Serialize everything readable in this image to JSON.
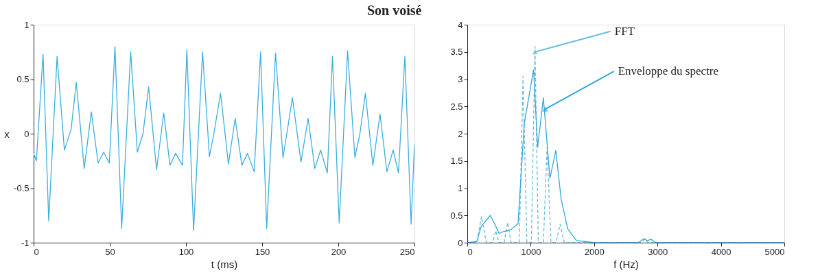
{
  "chart_data": [
    {
      "type": "line",
      "title": "Son voisé",
      "xlabel": "t (ms)",
      "ylabel": "x",
      "xlim": [
        0,
        250
      ],
      "xticks": [
        0,
        50,
        100,
        150,
        200,
        250
      ],
      "ylim": [
        -1,
        1
      ],
      "yticks": [
        -1,
        -0.5,
        0,
        0.5,
        1
      ],
      "grid": false,
      "line_style": "solid",
      "series": [
        {
          "color": "#3aaee0",
          "x": [
            0,
            1.8,
            6.2,
            9.9,
            15.4,
            20.2,
            24.6,
            28.0,
            33.2,
            37.9,
            42.3,
            46.0,
            49.7,
            53.4,
            57.8,
            63.7,
            68.1,
            71.8,
            75.5,
            80.7,
            85.4,
            89.5,
            93.2,
            97.7,
            100.6,
            105.0,
            110.9,
            115.4,
            118.3,
            122.7,
            127.9,
            132.3,
            136.7,
            140.4,
            144.8,
            149.0,
            153.0,
            158.8,
            163.7,
            166.2,
            169.9,
            175.5,
            180.2,
            184.6,
            188.4,
            192.8,
            196.2,
            200.6,
            206.1,
            210.9,
            214.2,
            217.8,
            222.7,
            227.4,
            231.9,
            236.0,
            239.5,
            243.7,
            247.8,
            250
          ],
          "values": [
            -0.18,
            -0.25,
            0.73,
            -0.8,
            0.71,
            -0.15,
            0.04,
            0.47,
            -0.32,
            0.2,
            -0.27,
            -0.17,
            -0.27,
            0.8,
            -0.87,
            0.75,
            -0.17,
            0.0,
            0.43,
            -0.33,
            0.19,
            -0.29,
            -0.18,
            -0.29,
            0.77,
            -0.89,
            0.75,
            -0.21,
            0.0,
            0.37,
            -0.28,
            0.14,
            -0.29,
            -0.18,
            -0.35,
            0.75,
            -0.87,
            0.74,
            -0.22,
            0.0,
            0.33,
            -0.26,
            0.14,
            -0.32,
            -0.15,
            -0.36,
            0.71,
            -0.82,
            0.76,
            -0.22,
            0.0,
            0.37,
            -0.29,
            0.18,
            -0.35,
            -0.15,
            -0.36,
            0.71,
            -0.83,
            -0.1
          ]
        }
      ]
    },
    {
      "type": "line",
      "xlabel": "f  (Hz)",
      "xlim": [
        0,
        5000
      ],
      "xticks": [
        0,
        1000,
        2000,
        3000,
        4000,
        5000
      ],
      "ylim": [
        0,
        4
      ],
      "yticks": [
        0,
        0.5,
        1,
        1.5,
        2,
        2.5,
        3,
        3.5,
        4
      ],
      "grid": false,
      "annotations": [
        {
          "text": "FFT",
          "x": 1068,
          "y": 3.5
        },
        {
          "text": "Enveloppe du spectre",
          "x": 1230,
          "y": 2.45
        }
      ],
      "series": [
        {
          "color": "#6bbcdc",
          "line_style": "dashed",
          "x": [
            0,
            150,
            224,
            300,
            400,
            448,
            500,
            580,
            637,
            690,
            820,
            879,
            940,
            1010,
            1068,
            1120,
            1200,
            1258,
            1320,
            1400,
            1464,
            1530,
            2750,
            2800,
            2850,
            5000
          ],
          "values": [
            0,
            0,
            0.48,
            0,
            0,
            0.22,
            0,
            0,
            0.37,
            0,
            0,
            3.05,
            0,
            0,
            3.6,
            0,
            0,
            1.75,
            0,
            0,
            0.34,
            0,
            0,
            0.07,
            0,
            0
          ]
        },
        {
          "color": "#2fa7dc",
          "line_style": "solid",
          "x": [
            0,
            150,
            220,
            362,
            450,
            500,
            560,
            640,
            700,
            800,
            900,
            1045,
            1110,
            1200,
            1303,
            1396,
            1480,
            1585,
            1722,
            2000,
            2700,
            2780,
            2840,
            2900,
            2980,
            5000
          ],
          "values": [
            0,
            0.02,
            0.3,
            0.5,
            0.3,
            0.17,
            0.2,
            0.22,
            0.25,
            0.35,
            2.2,
            3.17,
            1.75,
            2.66,
            1.18,
            1.69,
            0.8,
            0.25,
            0.04,
            0,
            0,
            0.07,
            0.04,
            0.06,
            0,
            0
          ]
        }
      ]
    }
  ]
}
